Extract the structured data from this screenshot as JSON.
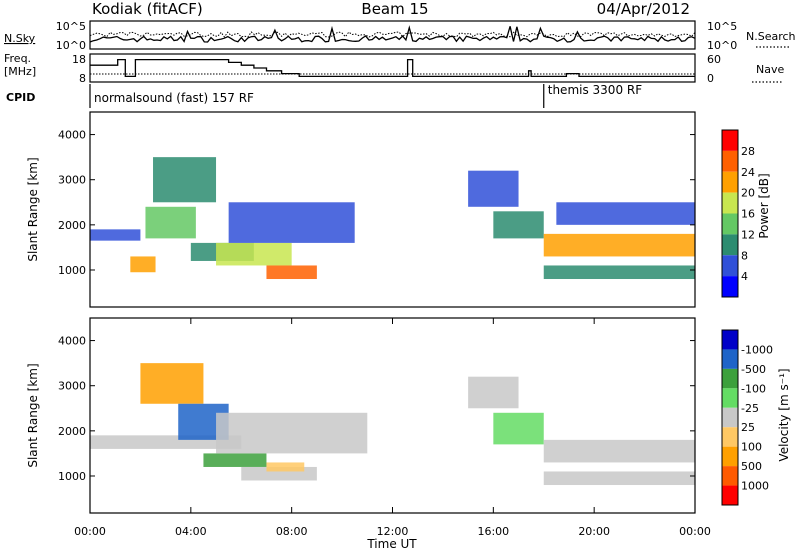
{
  "header": {
    "radar": "Kodiak (fitACF)",
    "beam": "Beam 15",
    "date": "04/Apr/2012"
  },
  "side_labels": {
    "nsky": "N.Sky",
    "nsearch": "N.Search",
    "freq_top": "Freq.",
    "freq_unit": "[MHz]",
    "nave": "Nave",
    "cpid": "CPID"
  },
  "noise_panel": {
    "left_ticks": [
      "10^5",
      "10^0"
    ],
    "right_ticks": [
      "10^5",
      "10^0"
    ]
  },
  "freq_panel": {
    "left_ticks": [
      "18",
      "8"
    ],
    "right_ticks": [
      "60",
      "0"
    ],
    "freq_steps": [
      [
        0,
        14
      ],
      [
        1.1,
        14
      ],
      [
        1.1,
        16
      ],
      [
        1.4,
        16
      ],
      [
        1.4,
        10
      ],
      [
        1.8,
        10
      ],
      [
        1.8,
        16
      ],
      [
        5.5,
        16
      ],
      [
        5.5,
        15
      ],
      [
        6.0,
        15
      ],
      [
        6.0,
        14
      ],
      [
        6.5,
        14
      ],
      [
        6.5,
        13
      ],
      [
        7.0,
        13
      ],
      [
        7.0,
        12
      ],
      [
        7.6,
        12
      ],
      [
        7.6,
        11
      ],
      [
        8.3,
        11
      ],
      [
        8.3,
        10
      ],
      [
        12.6,
        10
      ],
      [
        12.6,
        16
      ],
      [
        12.8,
        16
      ],
      [
        12.8,
        10
      ],
      [
        17.4,
        10
      ],
      [
        17.4,
        12
      ],
      [
        17.5,
        12
      ],
      [
        17.5,
        10
      ],
      [
        18.9,
        10
      ],
      [
        18.9,
        11
      ],
      [
        19.4,
        11
      ],
      [
        19.4,
        10
      ],
      [
        24,
        10
      ]
    ],
    "nave_level": 8
  },
  "cpid_panel": {
    "segment1": "normalsound (fast) 157 RF",
    "segment2": "themis 3300 RF",
    "switch_hour": 18.0
  },
  "colorbars": {
    "power": {
      "label": "Power [dB]",
      "ticks": [
        "4",
        "8",
        "12",
        "16",
        "20",
        "24",
        "28"
      ],
      "colors": [
        "#0000ff",
        "#3050d8",
        "#2c8c70",
        "#64c864",
        "#c8e650",
        "#ffa000",
        "#ff6000",
        "#ff0000"
      ]
    },
    "velocity": {
      "label": "Velocity [m s⁻¹]",
      "ticks": [
        "1000",
        "500",
        "100",
        "25",
        "-25",
        "-100",
        "-500",
        "-1000"
      ],
      "colors": [
        "#ff0000",
        "#ff5a00",
        "#ffa000",
        "#ffc864",
        "#c8c8c8",
        "#64dc64",
        "#3ca03c",
        "#1e64c8",
        "#0000c8"
      ]
    }
  },
  "chart_data": [
    {
      "type": "heatmap",
      "name": "power",
      "ylabel": "Slant Range [km]",
      "xlim": [
        0,
        24
      ],
      "ylim": [
        180,
        4500
      ],
      "yticks": [
        "1000",
        "2000",
        "3000",
        "4000"
      ],
      "clabel": "Power [dB]",
      "features": [
        {
          "t0": 0.0,
          "t1": 2.0,
          "r0": 1650,
          "r1": 1900,
          "level": 1
        },
        {
          "t0": 1.6,
          "t1": 2.6,
          "r0": 950,
          "r1": 1300,
          "level": 5
        },
        {
          "t0": 2.2,
          "t1": 4.2,
          "r0": 1700,
          "r1": 2400,
          "level": 3
        },
        {
          "t0": 2.5,
          "t1": 5.0,
          "r0": 2500,
          "r1": 3500,
          "level": 2
        },
        {
          "t0": 4.0,
          "t1": 6.5,
          "r0": 1200,
          "r1": 1600,
          "level": 2
        },
        {
          "t0": 5.0,
          "t1": 8.0,
          "r0": 1100,
          "r1": 1600,
          "level": 4
        },
        {
          "t0": 7.0,
          "t1": 9.0,
          "r0": 800,
          "r1": 1100,
          "level": 6
        },
        {
          "t0": 5.5,
          "t1": 10.5,
          "r0": 1600,
          "r1": 2500,
          "level": 1
        },
        {
          "t0": 15.0,
          "t1": 17.0,
          "r0": 2400,
          "r1": 3200,
          "level": 1
        },
        {
          "t0": 16.0,
          "t1": 18.0,
          "r0": 1700,
          "r1": 2300,
          "level": 2
        },
        {
          "t0": 18.0,
          "t1": 24.0,
          "r0": 1300,
          "r1": 1800,
          "level": 5
        },
        {
          "t0": 18.0,
          "t1": 24.0,
          "r0": 800,
          "r1": 1100,
          "level": 2
        },
        {
          "t0": 18.5,
          "t1": 24.0,
          "r0": 2000,
          "r1": 2500,
          "level": 1
        }
      ]
    },
    {
      "type": "heatmap",
      "name": "velocity",
      "xlabel": "Time UT",
      "ylabel": "Slant Range [km]",
      "xlim": [
        0,
        24
      ],
      "ylim": [
        180,
        4500
      ],
      "xticks": [
        "00:00",
        "04:00",
        "08:00",
        "12:00",
        "16:00",
        "20:00",
        "00:00"
      ],
      "yticks": [
        "1000",
        "2000",
        "3000",
        "4000"
      ],
      "clabel": "Velocity [m s⁻¹]",
      "features": [
        {
          "t0": 0.0,
          "t1": 6.0,
          "r0": 1600,
          "r1": 1900,
          "level": 4
        },
        {
          "t0": 2.0,
          "t1": 4.5,
          "r0": 2600,
          "r1": 3500,
          "level": 2
        },
        {
          "t0": 3.5,
          "t1": 5.5,
          "r0": 1800,
          "r1": 2600,
          "level": 7
        },
        {
          "t0": 4.5,
          "t1": 7.0,
          "r0": 1200,
          "r1": 1500,
          "level": 6
        },
        {
          "t0": 5.0,
          "t1": 11.0,
          "r0": 1500,
          "r1": 2400,
          "level": 4
        },
        {
          "t0": 6.0,
          "t1": 9.0,
          "r0": 900,
          "r1": 1200,
          "level": 4
        },
        {
          "t0": 7.0,
          "t1": 8.5,
          "r0": 1100,
          "r1": 1300,
          "level": 3
        },
        {
          "t0": 15.0,
          "t1": 17.0,
          "r0": 2500,
          "r1": 3200,
          "level": 4
        },
        {
          "t0": 16.0,
          "t1": 18.0,
          "r0": 1700,
          "r1": 2400,
          "level": 5
        },
        {
          "t0": 18.0,
          "t1": 24.0,
          "r0": 1300,
          "r1": 1800,
          "level": 4
        },
        {
          "t0": 18.0,
          "t1": 24.0,
          "r0": 800,
          "r1": 1100,
          "level": 4
        }
      ]
    }
  ]
}
